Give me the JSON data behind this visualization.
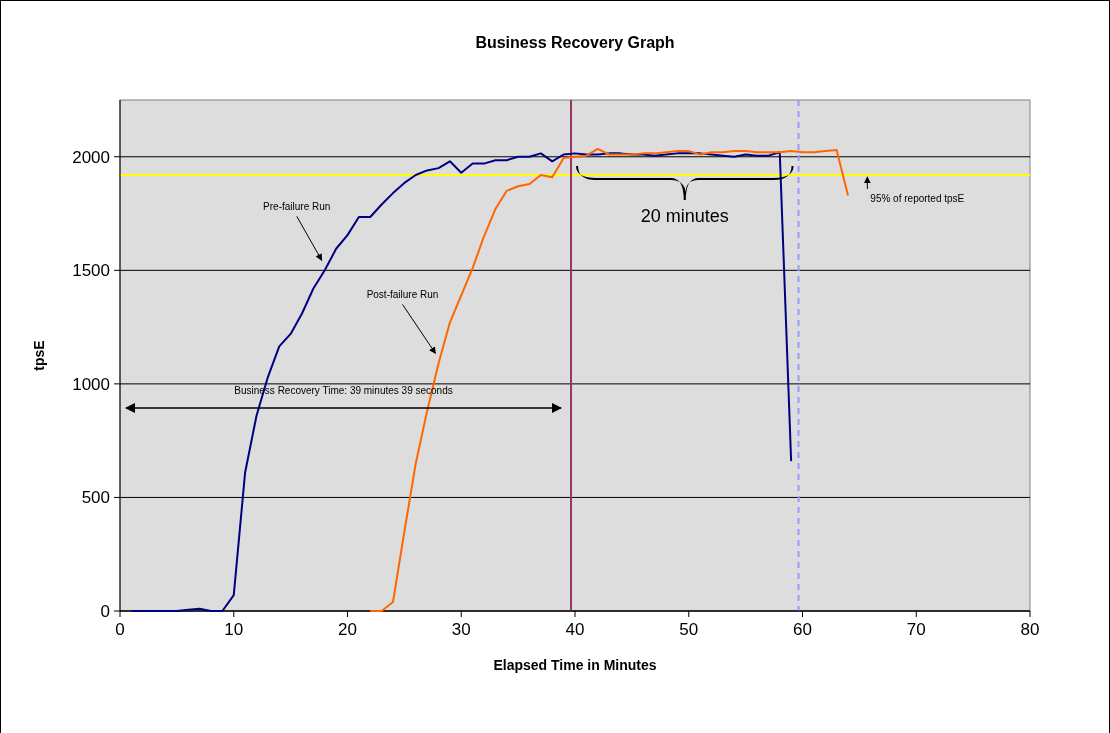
{
  "chart_data": {
    "type": "line",
    "title": "Business Recovery Graph",
    "xlabel": "Elapsed Time in Minutes",
    "ylabel": "tpsE",
    "xlim": [
      0,
      80
    ],
    "xticks": [
      0,
      10,
      20,
      30,
      40,
      50,
      60,
      70,
      80
    ],
    "ylim": [
      0,
      2250
    ],
    "yticks": [
      0,
      500,
      1000,
      1500,
      2000
    ],
    "grid": "y",
    "marker": "none",
    "line_style": "solid",
    "series": [
      {
        "name": "Pre-failure Run",
        "color": "#000080",
        "x": [
          1,
          2,
          3,
          4,
          5,
          6,
          7,
          8,
          9,
          10,
          11,
          12,
          13,
          14,
          15,
          16,
          17,
          18,
          19,
          20,
          21,
          22,
          23,
          24,
          25,
          26,
          27,
          28,
          29,
          30,
          31,
          32,
          33,
          34,
          35,
          36,
          37,
          38,
          39,
          40,
          41,
          42,
          43,
          44,
          45,
          46,
          47,
          48,
          49,
          50,
          51,
          52,
          53,
          54,
          55,
          56,
          57,
          58,
          59
        ],
        "values": [
          0,
          0,
          0,
          0,
          0,
          5,
          10,
          0,
          0,
          70,
          610,
          860,
          1030,
          1165,
          1220,
          1310,
          1420,
          1500,
          1595,
          1655,
          1735,
          1735,
          1790,
          1840,
          1885,
          1920,
          1940,
          1950,
          1980,
          1930,
          1970,
          1970,
          1985,
          1985,
          2000,
          2000,
          2015,
          1980,
          2010,
          2015,
          2010,
          2010,
          2015,
          2015,
          2010,
          2010,
          2005,
          2010,
          2015,
          2015,
          2015,
          2010,
          2005,
          2000,
          2010,
          2005,
          2005,
          2020,
          660
        ]
      },
      {
        "name": "Post-failure Run",
        "color": "#ff6600",
        "x": [
          22,
          23,
          24,
          25,
          26,
          27,
          28,
          29,
          30,
          31,
          32,
          33,
          34,
          35,
          36,
          37,
          38,
          39,
          40,
          41,
          42,
          43,
          44,
          45,
          46,
          47,
          48,
          49,
          50,
          51,
          52,
          53,
          54,
          55,
          56,
          57,
          58,
          59,
          60,
          61,
          62,
          63,
          64
        ],
        "values": [
          0,
          0,
          40,
          350,
          650,
          880,
          1090,
          1270,
          1390,
          1510,
          1650,
          1770,
          1850,
          1870,
          1880,
          1920,
          1910,
          1995,
          2000,
          2005,
          2035,
          2010,
          2010,
          2010,
          2015,
          2015,
          2020,
          2025,
          2025,
          2010,
          2020,
          2020,
          2025,
          2025,
          2020,
          2020,
          2020,
          2025,
          2020,
          2020,
          2025,
          2030,
          1830
        ]
      }
    ],
    "ref_lines": [
      {
        "axis": "y",
        "value": 1920,
        "label": "95% of reported tpsE",
        "color": "#ffff00",
        "line_style": "solid"
      },
      {
        "axis": "x",
        "value": 39.65,
        "color": "#993366",
        "line_style": "solid"
      },
      {
        "axis": "x",
        "value": 59.65,
        "color": "#9999ff",
        "line_style": "dashed"
      }
    ],
    "annotations": [
      "Business Recovery Time: 39 minutes 39 seconds",
      "20 minutes"
    ]
  }
}
